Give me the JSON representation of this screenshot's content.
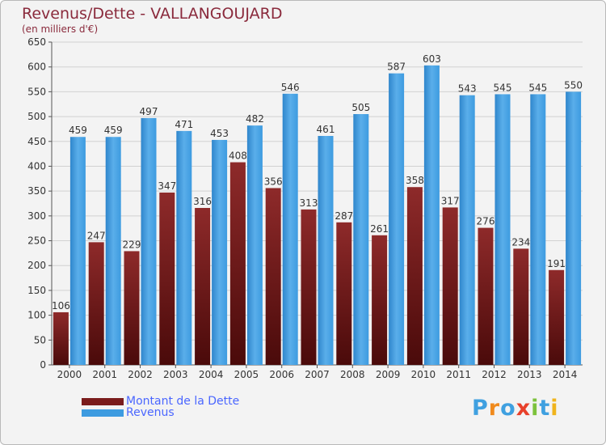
{
  "chart_data": {
    "type": "bar",
    "title": "Revenus/Dette - VALLANGOUJARD",
    "subtitle": "(en milliers d'€)",
    "categories": [
      "2000",
      "2001",
      "2002",
      "2003",
      "2004",
      "2005",
      "2006",
      "2007",
      "2008",
      "2009",
      "2010",
      "2011",
      "2012",
      "2013",
      "2014"
    ],
    "series": [
      {
        "name": "Montant de la Dette",
        "color": "#7a1c1c",
        "values": [
          106,
          247,
          229,
          347,
          316,
          408,
          356,
          313,
          287,
          261,
          358,
          317,
          276,
          234,
          191
        ]
      },
      {
        "name": "Revenus",
        "color": "#3d9be0",
        "values": [
          459,
          459,
          497,
          471,
          453,
          482,
          546,
          461,
          505,
          587,
          603,
          543,
          545,
          545,
          550
        ]
      }
    ],
    "ylim": [
      0,
      650
    ],
    "yticks": [
      0,
      50,
      100,
      150,
      200,
      250,
      300,
      350,
      400,
      450,
      500,
      550,
      600,
      650
    ],
    "grid": true,
    "legend_position": "bottom-left"
  },
  "legend": [
    {
      "label": "Montant de la Dette",
      "color": "#7a1c1c"
    },
    {
      "label": "Revenus",
      "color": "#3d9be0"
    }
  ],
  "logo": {
    "text": "Proxiti",
    "letters": [
      {
        "ch": "P",
        "color": "#3fa0e0"
      },
      {
        "ch": "r",
        "color": "#f08a1c"
      },
      {
        "ch": "o",
        "color": "#3fa0e0"
      },
      {
        "ch": "x",
        "color": "#e8402a"
      },
      {
        "ch": "i",
        "color": "#7cc23c"
      },
      {
        "ch": "t",
        "color": "#3fa0e0"
      },
      {
        "ch": "i",
        "color": "#f0b41c"
      }
    ]
  }
}
